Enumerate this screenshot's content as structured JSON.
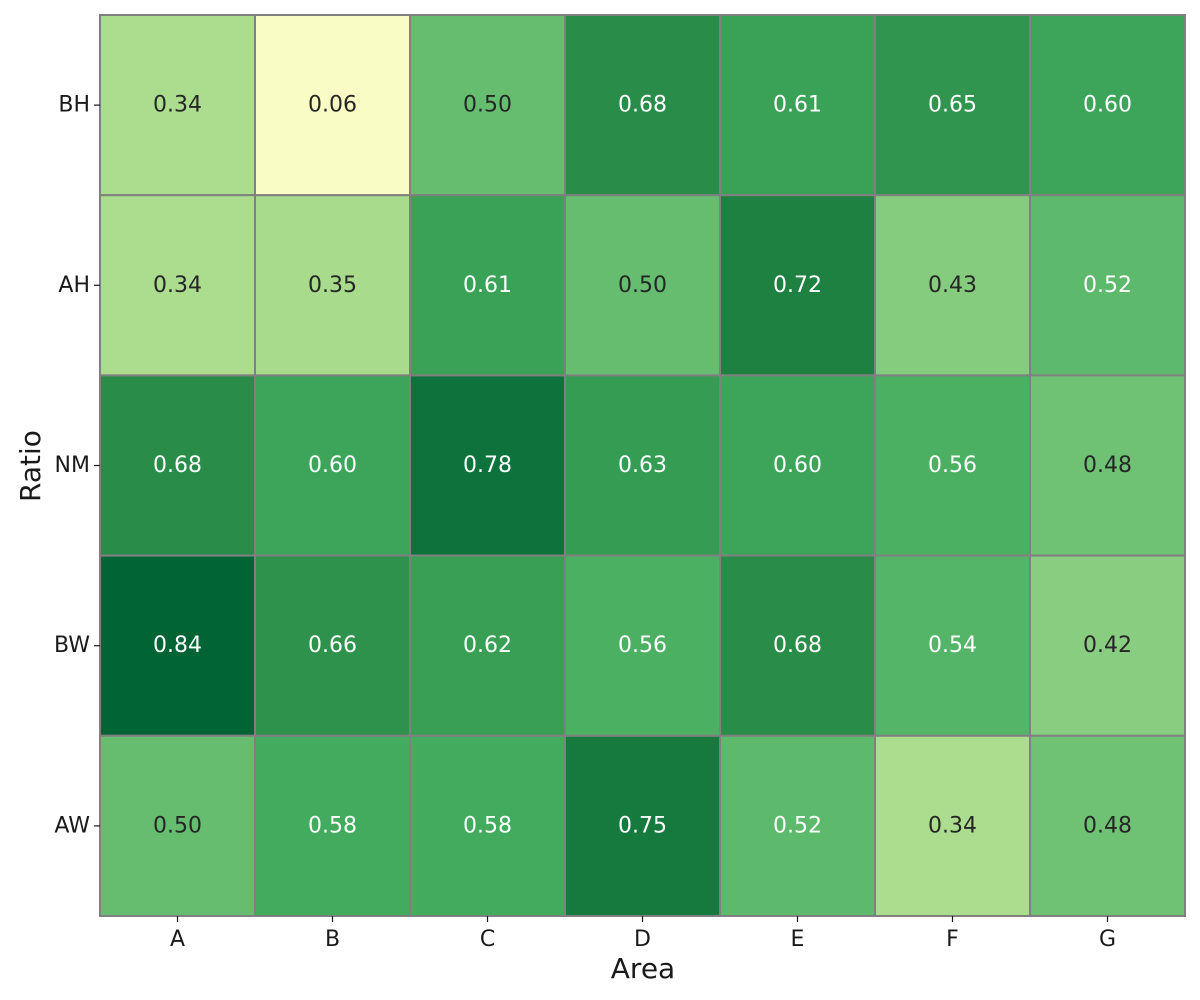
{
  "chart_data": {
    "type": "heatmap",
    "title": "",
    "xlabel": "Area",
    "ylabel": "Ratio",
    "x_categories": [
      "A",
      "B",
      "C",
      "D",
      "E",
      "F",
      "G"
    ],
    "y_categories": [
      "BH",
      "AH",
      "NM",
      "BW",
      "AW"
    ],
    "values": [
      [
        0.34,
        0.06,
        0.5,
        0.68,
        0.61,
        0.65,
        0.6
      ],
      [
        0.34,
        0.35,
        0.61,
        0.5,
        0.72,
        0.43,
        0.52
      ],
      [
        0.68,
        0.6,
        0.78,
        0.63,
        0.6,
        0.56,
        0.48
      ],
      [
        0.84,
        0.66,
        0.62,
        0.56,
        0.68,
        0.54,
        0.42
      ],
      [
        0.5,
        0.58,
        0.58,
        0.75,
        0.52,
        0.34,
        0.48
      ]
    ],
    "value_format": "0.00",
    "colormap": "YlGn",
    "color_range": [
      0.06,
      0.84
    ],
    "cell_border_color": "#808080",
    "dark_text_color": "#262626",
    "light_text_color": "#ffffff",
    "colorbar": false,
    "grid": false
  }
}
